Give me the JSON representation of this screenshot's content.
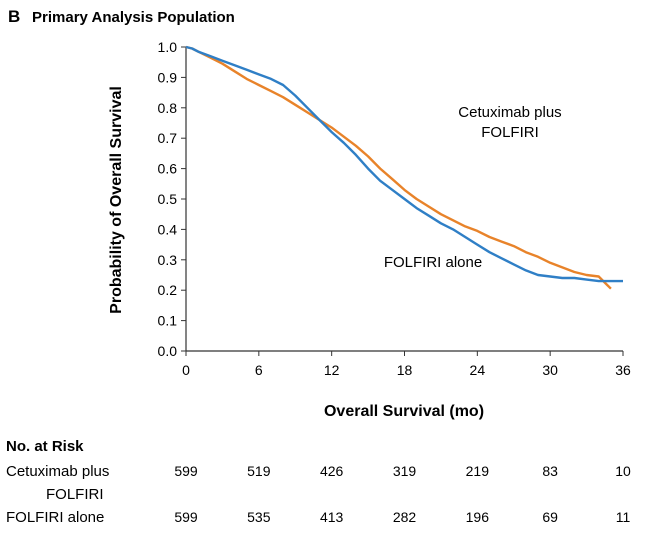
{
  "panel": {
    "letter": "B",
    "title": "Primary Analysis Population"
  },
  "colors": {
    "series_orange": "#e8832a",
    "series_blue": "#2f7fc6",
    "axis": "#333333"
  },
  "chart_data": {
    "type": "line",
    "xlabel": "Overall Survival (mo)",
    "ylabel": "Probability of Overall Survival",
    "xlim": [
      0,
      36
    ],
    "ylim": [
      0,
      1
    ],
    "xticks": [
      0,
      6,
      12,
      18,
      24,
      30,
      36
    ],
    "yticks": [
      "0.0",
      "0.1",
      "0.2",
      "0.3",
      "0.4",
      "0.5",
      "0.6",
      "0.7",
      "0.8",
      "0.9",
      "1.0"
    ],
    "grid": false,
    "annotations": [
      {
        "text": "Cetuximab plus FOLFIRI",
        "series": "Cetuximab plus FOLFIRI"
      },
      {
        "text": "FOLFIRI alone",
        "series": "FOLFIRI alone"
      }
    ],
    "series": [
      {
        "name": "Cetuximab plus FOLFIRI",
        "color": "#e8832a",
        "x": [
          0,
          0.5,
          1,
          2,
          3,
          4,
          5,
          6,
          7,
          8,
          9,
          10,
          11,
          12,
          13,
          14,
          15,
          16,
          17,
          18,
          19,
          20,
          21,
          22,
          23,
          24,
          25,
          26,
          27,
          28,
          29,
          30,
          31,
          32,
          33,
          34,
          34.5,
          35
        ],
        "y": [
          1.0,
          0.995,
          0.985,
          0.965,
          0.945,
          0.92,
          0.895,
          0.875,
          0.855,
          0.835,
          0.81,
          0.785,
          0.76,
          0.735,
          0.705,
          0.675,
          0.64,
          0.6,
          0.565,
          0.53,
          0.5,
          0.475,
          0.45,
          0.43,
          0.41,
          0.395,
          0.375,
          0.36,
          0.345,
          0.325,
          0.31,
          0.29,
          0.275,
          0.26,
          0.25,
          0.245,
          0.225,
          0.205
        ]
      },
      {
        "name": "FOLFIRI alone",
        "color": "#2f7fc6",
        "x": [
          0,
          0.5,
          1,
          2,
          3,
          4,
          5,
          6,
          7,
          8,
          9,
          10,
          11,
          12,
          13,
          14,
          15,
          16,
          17,
          18,
          19,
          20,
          21,
          22,
          23,
          24,
          25,
          26,
          27,
          28,
          29,
          30,
          31,
          32,
          33,
          34,
          35,
          36
        ],
        "y": [
          1.0,
          0.995,
          0.985,
          0.97,
          0.955,
          0.94,
          0.925,
          0.91,
          0.895,
          0.875,
          0.84,
          0.8,
          0.76,
          0.72,
          0.685,
          0.645,
          0.6,
          0.56,
          0.53,
          0.5,
          0.47,
          0.445,
          0.42,
          0.4,
          0.375,
          0.35,
          0.325,
          0.305,
          0.285,
          0.265,
          0.25,
          0.245,
          0.24,
          0.24,
          0.235,
          0.23,
          0.23,
          0.23
        ]
      }
    ]
  },
  "risk_table": {
    "header": "No. at Risk",
    "rows": [
      {
        "label_line1": "Cetuximab plus",
        "label_line2": "FOLFIRI",
        "values": [
          "599",
          "519",
          "426",
          "319",
          "219",
          "83",
          "10"
        ]
      },
      {
        "label_line1": "FOLFIRI alone",
        "label_line2": "",
        "values": [
          "599",
          "535",
          "413",
          "282",
          "196",
          "69",
          "11"
        ]
      }
    ]
  }
}
